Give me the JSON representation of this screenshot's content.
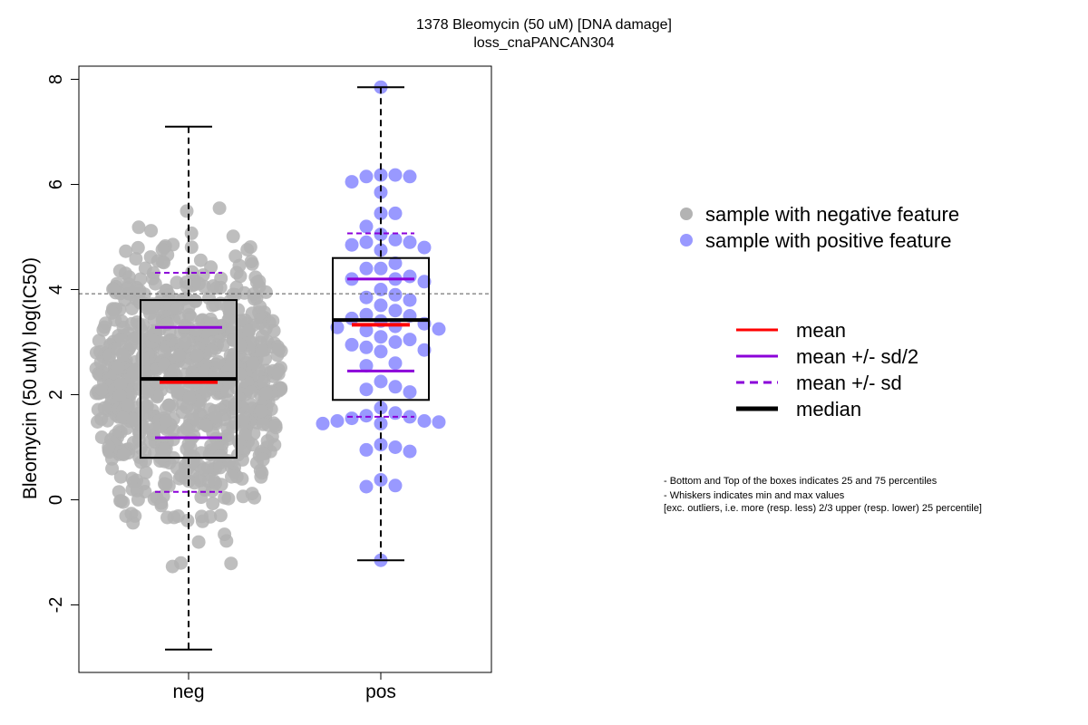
{
  "title": {
    "line1": "1378 Bleomycin (50 uM) [DNA damage]",
    "line2": "loss_cnaPANCAN304"
  },
  "colors": {
    "negative": "#b3b3b3",
    "positive": "#9999ff",
    "mean": "#ff0000",
    "sd": "#8b00d9",
    "median": "#000000",
    "reference_line": "#555555"
  },
  "legend_points": [
    {
      "label": "sample with negative feature",
      "color": "#b3b3b3"
    },
    {
      "label": "sample with positive feature",
      "color": "#9999ff"
    }
  ],
  "legend_lines": [
    {
      "label": "mean",
      "color": "#ff0000",
      "style": "solid"
    },
    {
      "label": "mean +/- sd/2",
      "color": "#8b00d9",
      "style": "solid"
    },
    {
      "label": "mean +/- sd",
      "color": "#8b00d9",
      "style": "dashed"
    },
    {
      "label": "median",
      "color": "#000000",
      "style": "solid-thick"
    }
  ],
  "notes": [
    "- Bottom and Top of the boxes indicates 25 and 75 percentiles",
    "- Whiskers indicates min and max values",
    "[exc. outliers, i.e. more (resp. less) 2/3 upper (resp. lower) 25 percentile]"
  ],
  "chart_data": {
    "type": "box-beeswarm",
    "ylabel": "Bleomycin (50 uM) log(IC50)",
    "xlabel": "",
    "categories": [
      "neg",
      "pos"
    ],
    "ylim": [
      -3.2,
      8.3
    ],
    "yticks": [
      -2,
      0,
      2,
      4,
      6,
      8
    ],
    "reference_line_y": 3.92,
    "groups": [
      {
        "name": "neg",
        "box": {
          "q1": 0.8,
          "median": 2.3,
          "q3": 3.8,
          "whisker_low": -2.85,
          "whisker_high": 7.1
        },
        "mean": 2.24,
        "mean_plus_half_sd": 3.28,
        "mean_minus_half_sd": 1.18,
        "mean_plus_sd": 4.32,
        "mean_minus_sd": 0.15,
        "n_points_approx": 900,
        "min": -2.85,
        "max": 7.1
      },
      {
        "name": "pos",
        "box": {
          "q1": 1.9,
          "median": 3.42,
          "q3": 4.6,
          "whisker_low": -1.15,
          "whisker_high": 7.85
        },
        "mean": 3.33,
        "mean_plus_half_sd": 4.2,
        "mean_minus_half_sd": 2.45,
        "mean_plus_sd": 5.07,
        "mean_minus_sd": 1.58,
        "points": [
          7.85,
          6.18,
          6.18,
          6.15,
          6.15,
          6.05,
          5.85,
          5.45,
          5.45,
          5.2,
          5.05,
          4.95,
          4.9,
          4.9,
          4.85,
          4.8,
          4.75,
          4.5,
          4.4,
          4.4,
          4.25,
          4.2,
          4.2,
          4.15,
          4.0,
          3.9,
          3.85,
          3.8,
          3.7,
          3.6,
          3.52,
          3.5,
          3.45,
          3.4,
          3.35,
          3.3,
          3.28,
          3.25,
          3.22,
          3.1,
          3.05,
          3.0,
          2.95,
          2.9,
          2.85,
          2.82,
          2.6,
          2.55,
          2.25,
          2.15,
          2.1,
          2.05,
          1.75,
          1.65,
          1.6,
          1.58,
          1.55,
          1.5,
          1.5,
          1.48,
          1.45,
          1.45,
          1.05,
          1.0,
          0.95,
          0.92,
          0.38,
          0.27,
          0.25,
          -1.15
        ]
      }
    ]
  }
}
